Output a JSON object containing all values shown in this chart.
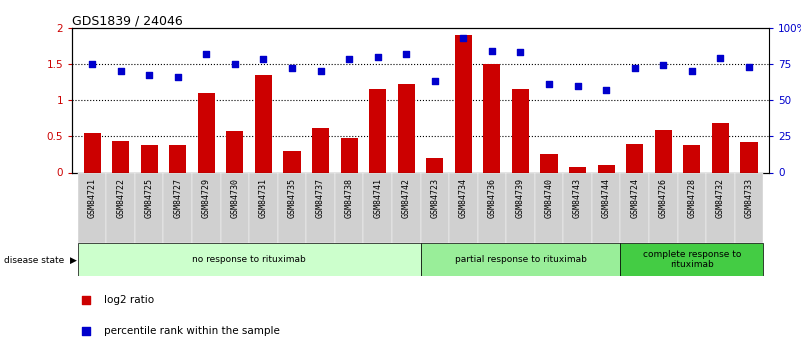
{
  "title": "GDS1839 / 24046",
  "categories": [
    "GSM84721",
    "GSM84722",
    "GSM84725",
    "GSM84727",
    "GSM84729",
    "GSM84730",
    "GSM84731",
    "GSM84735",
    "GSM84737",
    "GSM84738",
    "GSM84741",
    "GSM84742",
    "GSM84723",
    "GSM84734",
    "GSM84736",
    "GSM84739",
    "GSM84740",
    "GSM84743",
    "GSM84744",
    "GSM84724",
    "GSM84726",
    "GSM84728",
    "GSM84732",
    "GSM84733"
  ],
  "log2_ratio": [
    0.55,
    0.43,
    0.38,
    0.38,
    1.1,
    0.57,
    1.35,
    0.3,
    0.62,
    0.47,
    1.15,
    1.22,
    0.2,
    1.9,
    1.5,
    1.15,
    0.25,
    0.08,
    0.1,
    0.4,
    0.58,
    0.38,
    0.68,
    0.42
  ],
  "percentile_rank": [
    75,
    70,
    67,
    66,
    82,
    75,
    78,
    72,
    70,
    78,
    80,
    82,
    63,
    93,
    84,
    83,
    61,
    60,
    57,
    72,
    74,
    70,
    79,
    73
  ],
  "groups": [
    {
      "label": "no response to rituximab",
      "start": 0,
      "end": 12,
      "color": "#ccffcc"
    },
    {
      "label": "partial response to rituximab",
      "start": 12,
      "end": 19,
      "color": "#99ee99"
    },
    {
      "label": "complete response to\nrituximab",
      "start": 19,
      "end": 24,
      "color": "#44cc44"
    }
  ],
  "bar_color": "#cc0000",
  "dot_color": "#0000cc",
  "ylim_left": [
    0,
    2
  ],
  "ylim_right": [
    0,
    100
  ],
  "yticks_left": [
    0,
    0.5,
    1.0,
    1.5,
    2.0
  ],
  "ytick_labels_left": [
    "0",
    "0.5",
    "1",
    "1.5",
    "2"
  ],
  "yticks_right": [
    0,
    25,
    50,
    75,
    100
  ],
  "ytick_labels_right": [
    "0",
    "25",
    "50",
    "75",
    "100%"
  ],
  "hlines": [
    0.5,
    1.0,
    1.5
  ],
  "disease_state_label": "disease state",
  "legend_items": [
    {
      "label": "log2 ratio",
      "color": "#cc0000",
      "marker": "s"
    },
    {
      "label": "percentile rank within the sample",
      "color": "#0000cc",
      "marker": "s"
    }
  ],
  "xtick_bg": "#d0d0d0",
  "fig_width": 8.01,
  "fig_height": 3.45,
  "fig_dpi": 100
}
